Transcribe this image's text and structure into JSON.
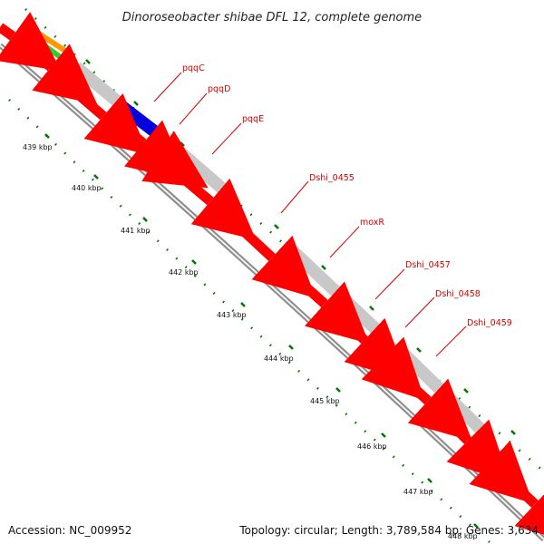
{
  "title": "Dinoroseobacter shibae DFL 12, complete genome",
  "accession": "Accession: NC_009952",
  "topology": "Topology: circular; Length: 3,789,584 bp; Genes: 3,634",
  "ticks": [
    "439 kbp",
    "440 kbp",
    "441 kbp",
    "442 kbp",
    "443 kbp",
    "444 kbp",
    "445 kbp",
    "446 kbp",
    "447 kbp",
    "448 kbp"
  ],
  "gene_labels": [
    "pqqC",
    "pqqD",
    "pqqE",
    "Dshi_0455",
    "moxR",
    "Dshi_0457",
    "Dshi_0458",
    "Dshi_0459"
  ],
  "colors": {
    "cds": "#ff0000",
    "other": "#c8c8c8",
    "highlight": "#0000dd",
    "trna": "#33cc33",
    "rrna": "#ff9900",
    "backbone": "#8a8a8a",
    "tick": "#007700",
    "label": "#d40000"
  }
}
